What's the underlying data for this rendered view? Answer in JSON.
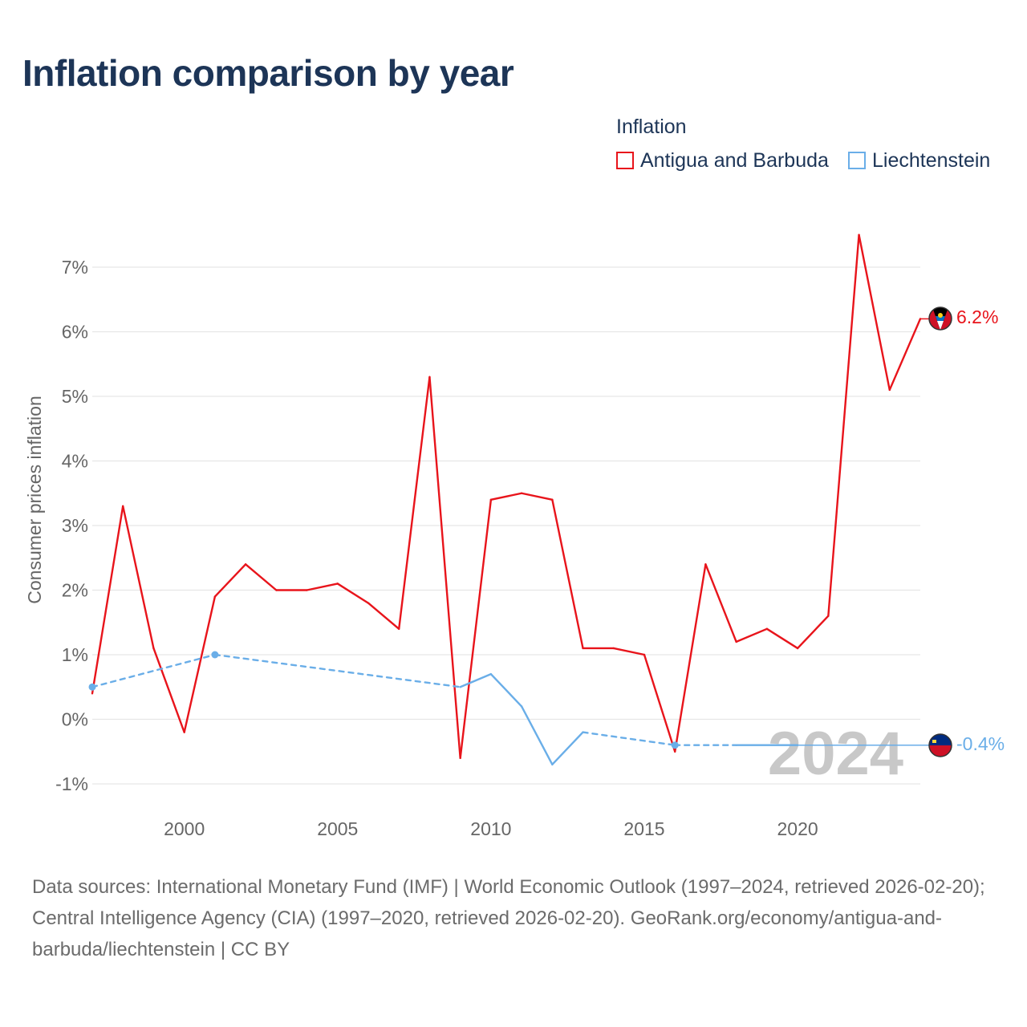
{
  "title": "Inflation comparison by year",
  "legend": {
    "title": "Inflation",
    "items": [
      {
        "label": "Antigua and Barbuda",
        "color": "#e8141b"
      },
      {
        "label": "Liechtenstein",
        "color": "#6aaee8"
      }
    ]
  },
  "year_watermark": "2024",
  "source_text": "Data sources: International Monetary Fund (IMF) | World Economic Outlook (1997–2024, retrieved 2026-02-20); Central Intelligence Agency (CIA) (1997–2020, retrieved 2026-02-20). GeoRank.org/economy/antigua-and-barbuda/liechtenstein | CC BY",
  "chart_data": {
    "type": "line",
    "title": "Inflation comparison by year",
    "xlabel": "",
    "ylabel": "Consumer prices inflation",
    "xlim": [
      1997,
      2024
    ],
    "ylim": [
      -1,
      7
    ],
    "x_ticks": [
      2000,
      2005,
      2010,
      2015,
      2020
    ],
    "x_tick_labels": [
      "2000",
      "2005",
      "2010",
      "2015",
      "2020"
    ],
    "y_ticks": [
      -1,
      0,
      1,
      2,
      3,
      4,
      5,
      6,
      7
    ],
    "y_tick_labels": [
      "-1%",
      "0%",
      "1%",
      "2%",
      "3%",
      "4%",
      "5%",
      "6%",
      "7%"
    ],
    "grid": true,
    "series": [
      {
        "name": "Antigua and Barbuda",
        "color": "#e8141b",
        "end_label": "6.2%",
        "points": [
          [
            1997,
            0.4
          ],
          [
            1998,
            3.3
          ],
          [
            1999,
            1.1
          ],
          [
            2000,
            -0.2
          ],
          [
            2001,
            1.9
          ],
          [
            2002,
            2.4
          ],
          [
            2003,
            2.0
          ],
          [
            2004,
            2.0
          ],
          [
            2005,
            2.1
          ],
          [
            2006,
            1.8
          ],
          [
            2007,
            1.4
          ],
          [
            2008,
            5.3
          ],
          [
            2009,
            -0.6
          ],
          [
            2010,
            3.4
          ],
          [
            2011,
            3.5
          ],
          [
            2012,
            3.4
          ],
          [
            2013,
            1.1
          ],
          [
            2014,
            1.1
          ],
          [
            2015,
            1.0
          ],
          [
            2016,
            -0.5
          ],
          [
            2017,
            2.4
          ],
          [
            2018,
            1.2
          ],
          [
            2019,
            1.4
          ],
          [
            2020,
            1.1
          ],
          [
            2021,
            1.6
          ],
          [
            2022,
            7.5
          ],
          [
            2023,
            5.1
          ],
          [
            2024,
            6.2
          ]
        ],
        "dashed_segments": []
      },
      {
        "name": "Liechtenstein",
        "color": "#6aaee8",
        "end_label": "-0.4%",
        "points": [
          [
            1997,
            0.5
          ],
          [
            2001,
            1.0
          ],
          [
            2009,
            0.5
          ],
          [
            2010,
            0.7
          ],
          [
            2011,
            0.2
          ],
          [
            2012,
            -0.7
          ],
          [
            2013,
            -0.2
          ],
          [
            2016,
            -0.4
          ],
          [
            2018,
            -0.4
          ],
          [
            2020,
            -0.4
          ]
        ],
        "dashed_segments": [
          [
            1997,
            2001
          ],
          [
            2001,
            2009
          ],
          [
            2013,
            2016
          ],
          [
            2016,
            2018
          ]
        ],
        "marked_points": [
          1997,
          2001,
          2016
        ]
      }
    ]
  }
}
